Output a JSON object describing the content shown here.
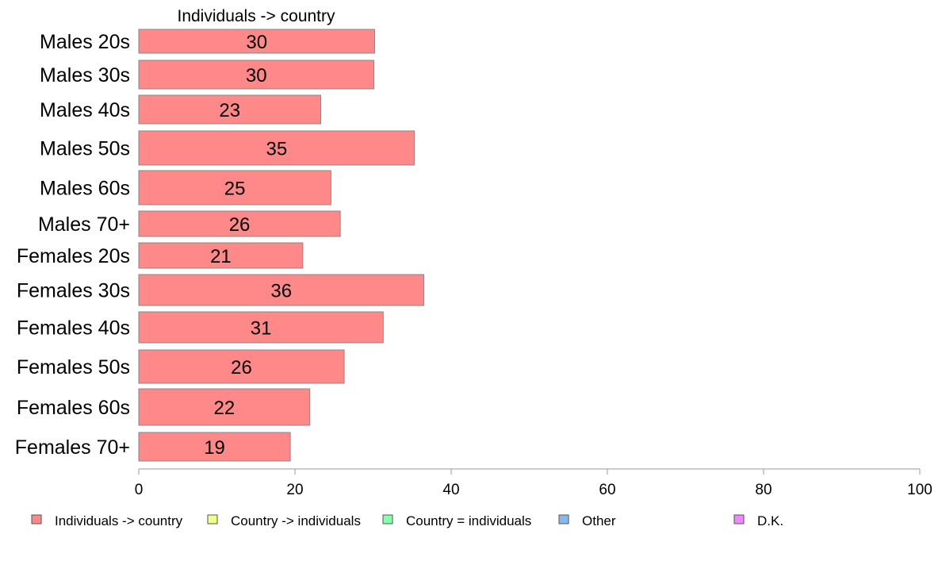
{
  "chart_data": {
    "type": "bar",
    "orientation": "horizontal",
    "title": "Individuals -> country",
    "categories": [
      "Males 20s",
      "Males 30s",
      "Males 40s",
      "Males 50s",
      "Males 60s",
      "Males 70+",
      "Females 20s",
      "Females 30s",
      "Females 40s",
      "Females 50s",
      "Females 60s",
      "Females 70+"
    ],
    "series": [
      {
        "name": "Individuals -> country",
        "color": "#ff8888",
        "values": [
          30.2,
          30.1,
          23.3,
          35.3,
          24.6,
          25.8,
          21.0,
          36.5,
          31.3,
          26.3,
          21.9,
          19.4
        ],
        "labels": [
          "30",
          "30",
          "23",
          "35",
          "25",
          "26",
          "21",
          "36",
          "31",
          "26",
          "22",
          "19"
        ]
      }
    ],
    "xlim": [
      0,
      100
    ],
    "xticks": [
      "0",
      "20",
      "40",
      "60",
      "80",
      "100"
    ],
    "grid": false,
    "legend": {
      "placement": "bottom",
      "entries": [
        {
          "label": "Individuals -> country",
          "color": "#ff8888"
        },
        {
          "label": "Country -> individuals",
          "color": "#f0ff88"
        },
        {
          "label": "Country = individuals",
          "color": "#88ffaa"
        },
        {
          "label": "Other",
          "color": "#88b8f0"
        },
        {
          "label": "D.K.",
          "color": "#ee88ff"
        }
      ]
    }
  }
}
